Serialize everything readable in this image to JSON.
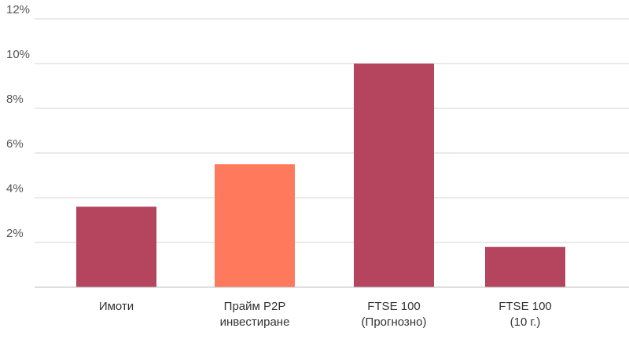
{
  "chart_data": {
    "type": "bar",
    "categories": [
      [
        "Имоти"
      ],
      [
        "Прайм P2P",
        "инвестиране"
      ],
      [
        "FTSE 100",
        "(Прогнозно)"
      ],
      [
        "FTSE 100",
        "(10 г.)"
      ]
    ],
    "values": [
      3.6,
      5.5,
      10.0,
      1.8
    ],
    "bar_colors": [
      "#b5455f",
      "#ff7a5c",
      "#b5455f",
      "#b5455f"
    ],
    "ylim": [
      0,
      12
    ],
    "yticks": [
      2,
      4,
      6,
      8,
      10,
      12
    ],
    "ytick_labels": [
      "2%",
      "4%",
      "6%",
      "8%",
      "10%",
      "12%"
    ],
    "grid": true,
    "title": "",
    "xlabel": "",
    "ylabel": ""
  }
}
